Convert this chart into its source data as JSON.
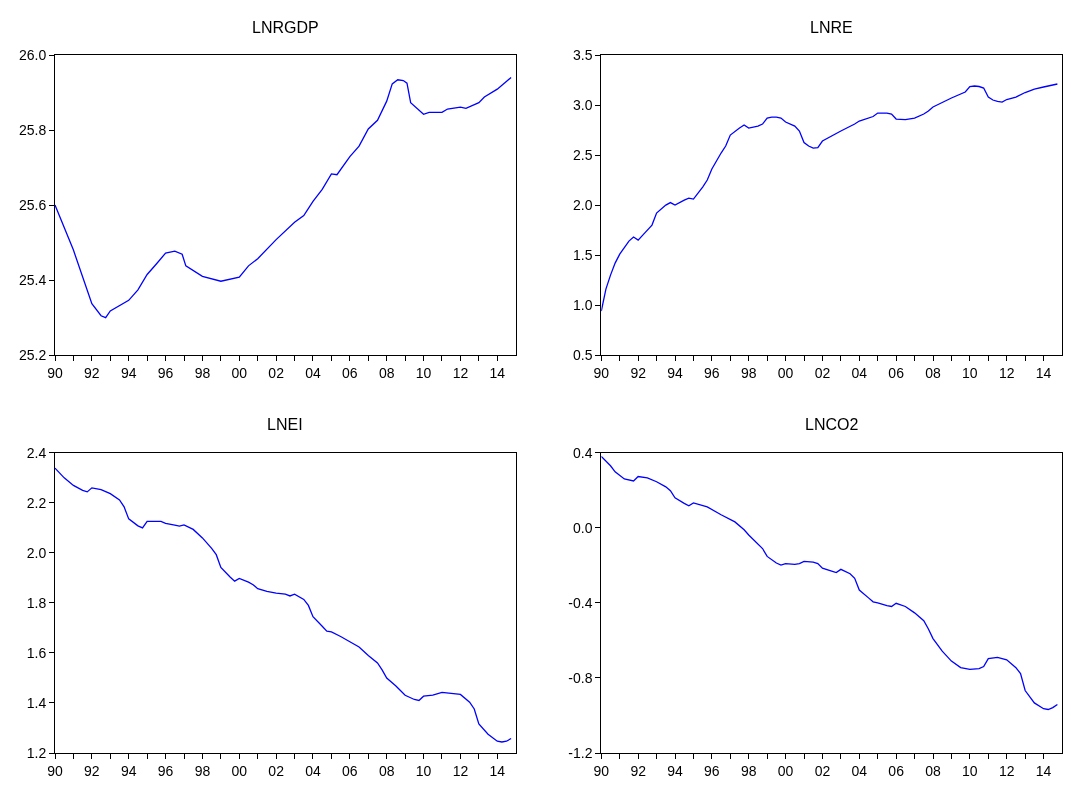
{
  "chart_data": [
    {
      "type": "line",
      "title": "LNRGDP",
      "xlim": [
        1990,
        2015
      ],
      "ylim": [
        25.2,
        26.0
      ],
      "yticks": [
        {
          "value": 25.2,
          "label": "25.2"
        },
        {
          "value": 25.4,
          "label": "25.4"
        },
        {
          "value": 25.6,
          "label": "25.6"
        },
        {
          "value": 25.8,
          "label": "25.8"
        },
        {
          "value": 26.0,
          "label": "26.0"
        }
      ],
      "xticks": [
        {
          "value": 1990,
          "label": "90"
        },
        {
          "value": 1991,
          "label": null
        },
        {
          "value": 1992,
          "label": "92"
        },
        {
          "value": 1993,
          "label": null
        },
        {
          "value": 1994,
          "label": "94"
        },
        {
          "value": 1995,
          "label": null
        },
        {
          "value": 1996,
          "label": "96"
        },
        {
          "value": 1997,
          "label": null
        },
        {
          "value": 1998,
          "label": "98"
        },
        {
          "value": 1999,
          "label": null
        },
        {
          "value": 2000,
          "label": "00"
        },
        {
          "value": 2001,
          "label": null
        },
        {
          "value": 2002,
          "label": "02"
        },
        {
          "value": 2003,
          "label": null
        },
        {
          "value": 2004,
          "label": "04"
        },
        {
          "value": 2005,
          "label": null
        },
        {
          "value": 2006,
          "label": "06"
        },
        {
          "value": 2007,
          "label": null
        },
        {
          "value": 2008,
          "label": "08"
        },
        {
          "value": 2009,
          "label": null
        },
        {
          "value": 2010,
          "label": "10"
        },
        {
          "value": 2011,
          "label": null
        },
        {
          "value": 2012,
          "label": "12"
        },
        {
          "value": 2013,
          "label": null
        },
        {
          "value": 2014,
          "label": "14"
        }
      ],
      "grid": false,
      "marker": "none",
      "line_style": "solid",
      "series": [
        {
          "color": "#0000ff",
          "x": [
            1990,
            1991,
            1992,
            1992.5,
            1992.75,
            1993,
            1994,
            1994.5,
            1995,
            1995.5,
            1996,
            1996.5,
            1996.9,
            1997.1,
            1998,
            1999,
            2000,
            2000.5,
            2001,
            2002,
            2003,
            2003.5,
            2004,
            2004.5,
            2005,
            2005.3,
            2006,
            2006.5,
            2007,
            2007.5,
            2008,
            2008.3,
            2008.6,
            2008.9,
            2009.1,
            2009.3,
            2010,
            2010.3,
            2011,
            2011.3,
            2012,
            2012.3,
            2013,
            2013.3,
            2014,
            2014.75
          ],
          "values": [
            25.6,
            25.48,
            25.337,
            25.305,
            25.3,
            25.318,
            25.346,
            25.374,
            25.415,
            25.443,
            25.472,
            25.477,
            25.469,
            25.438,
            25.41,
            25.397,
            25.408,
            25.438,
            25.457,
            25.508,
            25.554,
            25.572,
            25.61,
            25.642,
            25.683,
            25.681,
            25.729,
            25.757,
            25.803,
            25.826,
            25.877,
            25.923,
            25.934,
            25.932,
            25.925,
            25.873,
            25.842,
            25.847,
            25.847,
            25.856,
            25.861,
            25.858,
            25.873,
            25.888,
            25.909,
            25.94
          ]
        }
      ]
    },
    {
      "type": "line",
      "title": "LNRE",
      "xlim": [
        1990,
        2015
      ],
      "ylim": [
        0.5,
        3.5
      ],
      "yticks": [
        {
          "value": 0.5,
          "label": "0.5"
        },
        {
          "value": 1.0,
          "label": "1.0"
        },
        {
          "value": 1.5,
          "label": "1.5"
        },
        {
          "value": 2.0,
          "label": "2.0"
        },
        {
          "value": 2.5,
          "label": "2.5"
        },
        {
          "value": 3.0,
          "label": "3.0"
        },
        {
          "value": 3.5,
          "label": "3.5"
        }
      ],
      "xticks": [
        {
          "value": 1990,
          "label": "90"
        },
        {
          "value": 1991,
          "label": null
        },
        {
          "value": 1992,
          "label": "92"
        },
        {
          "value": 1993,
          "label": null
        },
        {
          "value": 1994,
          "label": "94"
        },
        {
          "value": 1995,
          "label": null
        },
        {
          "value": 1996,
          "label": "96"
        },
        {
          "value": 1997,
          "label": null
        },
        {
          "value": 1998,
          "label": "98"
        },
        {
          "value": 1999,
          "label": null
        },
        {
          "value": 2000,
          "label": "00"
        },
        {
          "value": 2001,
          "label": null
        },
        {
          "value": 2002,
          "label": "02"
        },
        {
          "value": 2003,
          "label": null
        },
        {
          "value": 2004,
          "label": "04"
        },
        {
          "value": 2005,
          "label": null
        },
        {
          "value": 2006,
          "label": "06"
        },
        {
          "value": 2007,
          "label": null
        },
        {
          "value": 2008,
          "label": "08"
        },
        {
          "value": 2009,
          "label": null
        },
        {
          "value": 2010,
          "label": "10"
        },
        {
          "value": 2011,
          "label": null
        },
        {
          "value": 2012,
          "label": "12"
        },
        {
          "value": 2013,
          "label": null
        },
        {
          "value": 2014,
          "label": "14"
        }
      ],
      "grid": false,
      "marker": "none",
      "line_style": "solid",
      "series": [
        {
          "color": "#0000ff",
          "x": [
            1990,
            1990.25,
            1990.5,
            1990.75,
            1991,
            1991.5,
            1991.75,
            1992,
            1992.25,
            1992.75,
            1993,
            1993.5,
            1993.75,
            1994,
            1994.5,
            1994.75,
            1995,
            1995.5,
            1995.75,
            1996,
            1996.5,
            1996.75,
            1997,
            1997.5,
            1997.75,
            1998,
            1998.5,
            1998.75,
            1999,
            1999.25,
            1999.5,
            1999.75,
            2000,
            2000.5,
            2000.75,
            2001,
            2001.25,
            2001.5,
            2001.75,
            2002,
            2003,
            2003.75,
            2004,
            2004.75,
            2005,
            2005.5,
            2005.75,
            2006,
            2006.5,
            2007,
            2007.5,
            2007.75,
            2008,
            2008.5,
            2009,
            2009.75,
            2010,
            2010.25,
            2010.5,
            2010.75,
            2011,
            2011.25,
            2011.5,
            2011.75,
            2012,
            2012.5,
            2013,
            2013.5,
            2014,
            2014.75
          ],
          "values": [
            0.94,
            1.16,
            1.3,
            1.42,
            1.51,
            1.64,
            1.68,
            1.65,
            1.7,
            1.8,
            1.92,
            2.0,
            2.025,
            2.0,
            2.05,
            2.07,
            2.06,
            2.18,
            2.25,
            2.36,
            2.52,
            2.59,
            2.7,
            2.77,
            2.8,
            2.77,
            2.79,
            2.81,
            2.87,
            2.88,
            2.88,
            2.87,
            2.83,
            2.79,
            2.74,
            2.625,
            2.59,
            2.57,
            2.575,
            2.64,
            2.74,
            2.81,
            2.84,
            2.885,
            2.92,
            2.92,
            2.91,
            2.86,
            2.855,
            2.87,
            2.91,
            2.94,
            2.98,
            3.025,
            3.07,
            3.13,
            3.185,
            3.19,
            3.185,
            3.17,
            3.08,
            3.05,
            3.036,
            3.03,
            3.055,
            3.08,
            3.125,
            3.16,
            3.18,
            3.21
          ]
        }
      ]
    },
    {
      "type": "line",
      "title": "LNEI",
      "xlim": [
        1990,
        2015
      ],
      "ylim": [
        1.2,
        2.4
      ],
      "yticks": [
        {
          "value": 1.2,
          "label": "1.2"
        },
        {
          "value": 1.4,
          "label": "1.4"
        },
        {
          "value": 1.6,
          "label": "1.6"
        },
        {
          "value": 1.8,
          "label": "1.8"
        },
        {
          "value": 2.0,
          "label": "2.0"
        },
        {
          "value": 2.2,
          "label": "2.2"
        },
        {
          "value": 2.4,
          "label": "2.4"
        }
      ],
      "xticks": [
        {
          "value": 1990,
          "label": "90"
        },
        {
          "value": 1991,
          "label": null
        },
        {
          "value": 1992,
          "label": "92"
        },
        {
          "value": 1993,
          "label": null
        },
        {
          "value": 1994,
          "label": "94"
        },
        {
          "value": 1995,
          "label": null
        },
        {
          "value": 1996,
          "label": "96"
        },
        {
          "value": 1997,
          "label": null
        },
        {
          "value": 1998,
          "label": "98"
        },
        {
          "value": 1999,
          "label": null
        },
        {
          "value": 2000,
          "label": "00"
        },
        {
          "value": 2001,
          "label": null
        },
        {
          "value": 2002,
          "label": "02"
        },
        {
          "value": 2003,
          "label": null
        },
        {
          "value": 2004,
          "label": "04"
        },
        {
          "value": 2005,
          "label": null
        },
        {
          "value": 2006,
          "label": "06"
        },
        {
          "value": 2007,
          "label": null
        },
        {
          "value": 2008,
          "label": "08"
        },
        {
          "value": 2009,
          "label": null
        },
        {
          "value": 2010,
          "label": "10"
        },
        {
          "value": 2011,
          "label": null
        },
        {
          "value": 2012,
          "label": "12"
        },
        {
          "value": 2013,
          "label": null
        },
        {
          "value": 2014,
          "label": "14"
        }
      ],
      "grid": false,
      "marker": "none",
      "line_style": "solid",
      "series": [
        {
          "color": "#0000ff",
          "x": [
            1990,
            1990.5,
            1991,
            1991.5,
            1991.75,
            1992,
            1992.5,
            1993,
            1993.5,
            1993.75,
            1994,
            1994.5,
            1994.75,
            1995,
            1995.75,
            1996,
            1996.5,
            1996.75,
            1997,
            1997.5,
            1998,
            1998.5,
            1998.75,
            1999,
            1999.5,
            1999.75,
            2000,
            2000.5,
            2000.75,
            2001,
            2001.5,
            2002,
            2002.5,
            2002.75,
            2003,
            2003.5,
            2003.75,
            2004,
            2004.5,
            2004.75,
            2005,
            2005.5,
            2006,
            2006.5,
            2007,
            2007.5,
            2007.75,
            2008,
            2008.5,
            2009,
            2009.5,
            2009.75,
            2010,
            2010.5,
            2011,
            2011.5,
            2012,
            2012.5,
            2012.75,
            2013,
            2013.5,
            2014,
            2014.25,
            2014.5,
            2014.75
          ],
          "values": [
            2.339,
            2.3,
            2.27,
            2.25,
            2.244,
            2.26,
            2.253,
            2.237,
            2.212,
            2.184,
            2.136,
            2.108,
            2.1,
            2.126,
            2.126,
            2.118,
            2.111,
            2.107,
            2.112,
            2.094,
            2.06,
            2.018,
            1.993,
            1.942,
            1.904,
            1.887,
            1.898,
            1.883,
            1.873,
            1.857,
            1.846,
            1.839,
            1.835,
            1.828,
            1.835,
            1.814,
            1.79,
            1.745,
            1.707,
            1.687,
            1.684,
            1.666,
            1.645,
            1.624,
            1.59,
            1.56,
            1.532,
            1.5,
            1.468,
            1.431,
            1.414,
            1.41,
            1.427,
            1.431,
            1.442,
            1.438,
            1.434,
            1.403,
            1.376,
            1.316,
            1.275,
            1.247,
            1.244,
            1.247,
            1.258
          ]
        }
      ]
    },
    {
      "type": "line",
      "title": "LNCO2",
      "xlim": [
        1990,
        2015
      ],
      "ylim": [
        -1.2,
        0.4
      ],
      "yticks": [
        {
          "value": -1.2,
          "label": "-1.2"
        },
        {
          "value": -0.8,
          "label": "-0.8"
        },
        {
          "value": -0.4,
          "label": "-0.4"
        },
        {
          "value": 0.0,
          "label": "0.0"
        },
        {
          "value": 0.4,
          "label": "0.4"
        }
      ],
      "xticks": [
        {
          "value": 1990,
          "label": "90"
        },
        {
          "value": 1991,
          "label": null
        },
        {
          "value": 1992,
          "label": "92"
        },
        {
          "value": 1993,
          "label": null
        },
        {
          "value": 1994,
          "label": "94"
        },
        {
          "value": 1995,
          "label": null
        },
        {
          "value": 1996,
          "label": "96"
        },
        {
          "value": 1997,
          "label": null
        },
        {
          "value": 1998,
          "label": "98"
        },
        {
          "value": 1999,
          "label": null
        },
        {
          "value": 2000,
          "label": "00"
        },
        {
          "value": 2001,
          "label": null
        },
        {
          "value": 2002,
          "label": "02"
        },
        {
          "value": 2003,
          "label": null
        },
        {
          "value": 2004,
          "label": "04"
        },
        {
          "value": 2005,
          "label": null
        },
        {
          "value": 2006,
          "label": "06"
        },
        {
          "value": 2007,
          "label": null
        },
        {
          "value": 2008,
          "label": "08"
        },
        {
          "value": 2009,
          "label": null
        },
        {
          "value": 2010,
          "label": "10"
        },
        {
          "value": 2011,
          "label": null
        },
        {
          "value": 2012,
          "label": "12"
        },
        {
          "value": 2013,
          "label": null
        },
        {
          "value": 2014,
          "label": "14"
        }
      ],
      "grid": false,
      "marker": "none",
      "line_style": "solid",
      "series": [
        {
          "color": "#0000ff",
          "x": [
            1990,
            1990.5,
            1990.75,
            1991.25,
            1991.75,
            1992,
            1992.5,
            1993,
            1993.5,
            1993.75,
            1994,
            1994.5,
            1994.75,
            1995,
            1995.75,
            1996.5,
            1997.25,
            1997.75,
            1998,
            1998.75,
            1999,
            1999.5,
            1999.75,
            2000,
            2000.5,
            2000.75,
            2001,
            2001.5,
            2001.75,
            2002,
            2002.5,
            2002.75,
            2003,
            2003.5,
            2003.75,
            2004,
            2004.5,
            2004.75,
            2005,
            2005.5,
            2005.75,
            2006,
            2006.5,
            2007,
            2007.5,
            2007.75,
            2008,
            2008.5,
            2009,
            2009.5,
            2010,
            2010.5,
            2010.75,
            2011,
            2011.5,
            2012,
            2012.5,
            2012.75,
            2013,
            2013.5,
            2014,
            2014.25,
            2014.5,
            2014.75
          ],
          "values": [
            0.381,
            0.331,
            0.299,
            0.261,
            0.25,
            0.274,
            0.267,
            0.246,
            0.219,
            0.198,
            0.16,
            0.131,
            0.118,
            0.133,
            0.112,
            0.07,
            0.032,
            -0.01,
            -0.038,
            -0.11,
            -0.152,
            -0.187,
            -0.198,
            -0.19,
            -0.194,
            -0.19,
            -0.179,
            -0.183,
            -0.19,
            -0.215,
            -0.23,
            -0.238,
            -0.221,
            -0.244,
            -0.269,
            -0.331,
            -0.373,
            -0.394,
            -0.4,
            -0.415,
            -0.419,
            -0.402,
            -0.419,
            -0.453,
            -0.495,
            -0.539,
            -0.59,
            -0.657,
            -0.71,
            -0.745,
            -0.754,
            -0.75,
            -0.739,
            -0.697,
            -0.69,
            -0.703,
            -0.745,
            -0.777,
            -0.867,
            -0.933,
            -0.964,
            -0.968,
            -0.958,
            -0.941
          ]
        }
      ]
    }
  ]
}
